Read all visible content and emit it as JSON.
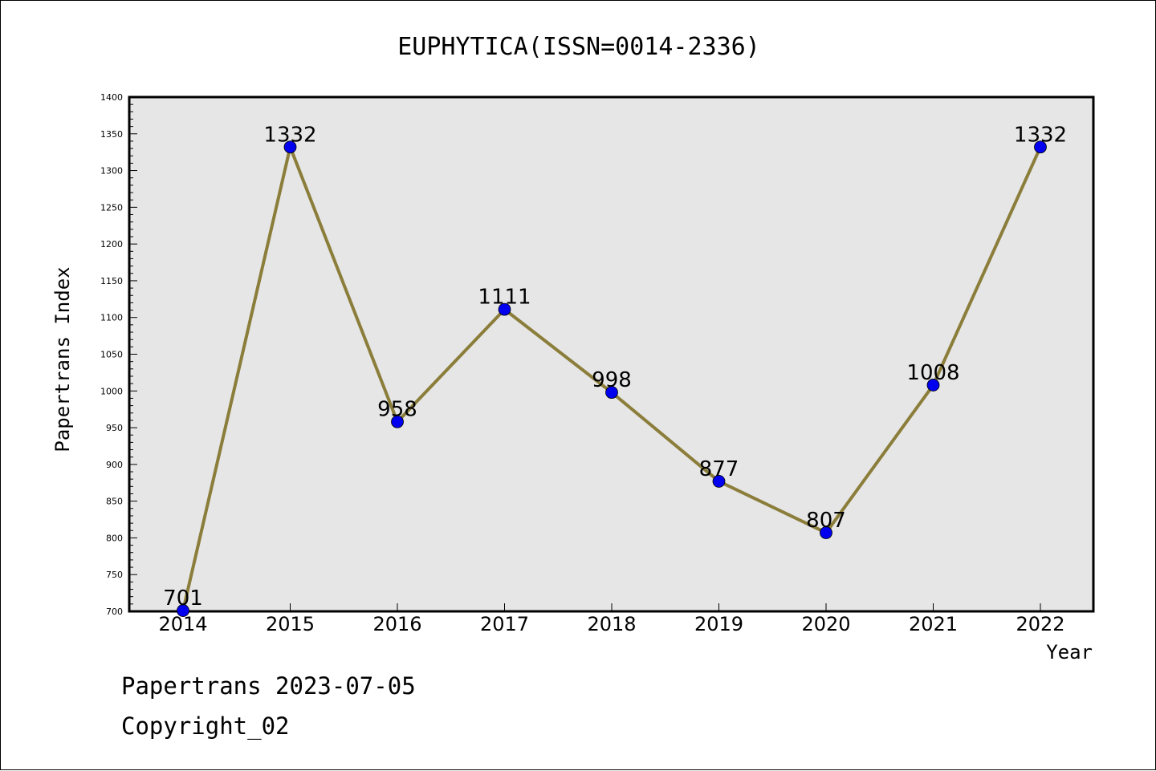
{
  "chart_data": {
    "type": "line",
    "title": "EUPHYTICA(ISSN=0014-2336)",
    "xlabel": "Year",
    "ylabel": "Papertrans Index",
    "categories": [
      "2014",
      "2015",
      "2016",
      "2017",
      "2018",
      "2019",
      "2020",
      "2021",
      "2022"
    ],
    "series": [
      {
        "values": [
          701,
          1332,
          958,
          1111,
          998,
          877,
          807,
          1008,
          1332
        ]
      }
    ],
    "data_labels": [
      "701",
      "1332",
      "958",
      "1111",
      "998",
      "877",
      "807",
      "1008",
      "1332"
    ],
    "ylim": [
      700,
      1400
    ],
    "yticks": [
      "700",
      "750",
      "800",
      "850",
      "900",
      "950",
      "1000",
      "1050",
      "1100",
      "1150",
      "1200",
      "1250",
      "1300",
      "1350",
      "1400"
    ],
    "grid": false,
    "colors": {
      "line": "#8B7D3A",
      "marker": "#0000EE",
      "plot_bg": "#E6E6E6"
    }
  },
  "footer": {
    "line1": "Papertrans 2023-07-05",
    "line2": "Copyright_02"
  }
}
